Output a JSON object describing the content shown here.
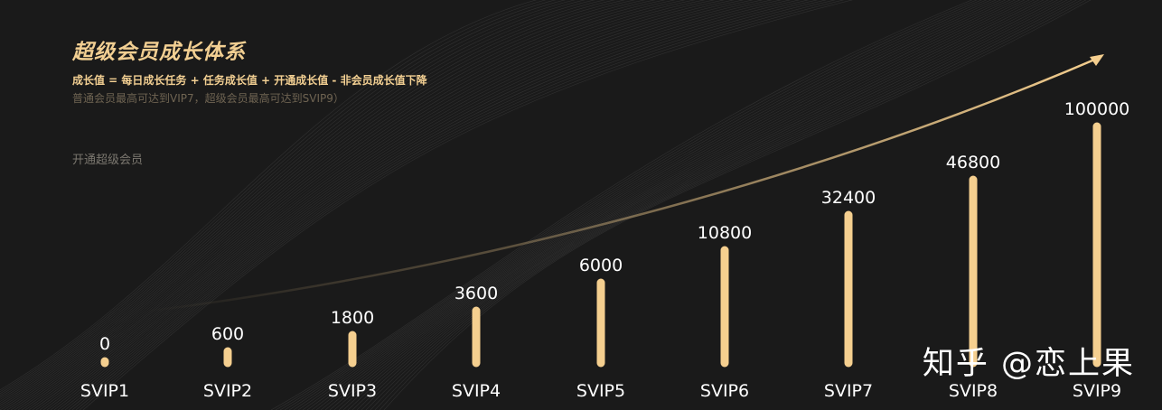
{
  "header": {
    "title": "超级会员成长体系",
    "formula": "成长值 = 每日成长任务 + 任务成长值 + 开通成长值 - 非会员成长值下降",
    "note": "普通会员最高可达到VIP7，超级会员最高可达到SVIP9）",
    "cta": "开通超级会员"
  },
  "watermark": "知乎 @恋上果",
  "colors": {
    "background": "#1a1a1a",
    "gold": "#f5cf8f",
    "label": "#ffffff"
  },
  "chart_data": {
    "type": "bar",
    "categories": [
      "SVIP1",
      "SVIP2",
      "SVIP3",
      "SVIP4",
      "SVIP5",
      "SVIP6",
      "SVIP7",
      "SVIP8",
      "SVIP9"
    ],
    "values": [
      0,
      600,
      1800,
      3600,
      6000,
      10800,
      32400,
      46800,
      100000
    ],
    "value_labels": [
      "0",
      "600",
      "1800",
      "3600",
      "6000",
      "10800",
      "32400",
      "46800",
      "100000"
    ],
    "title": "",
    "xlabel": "",
    "ylabel": "",
    "grid": false,
    "trend_arrow": true
  }
}
